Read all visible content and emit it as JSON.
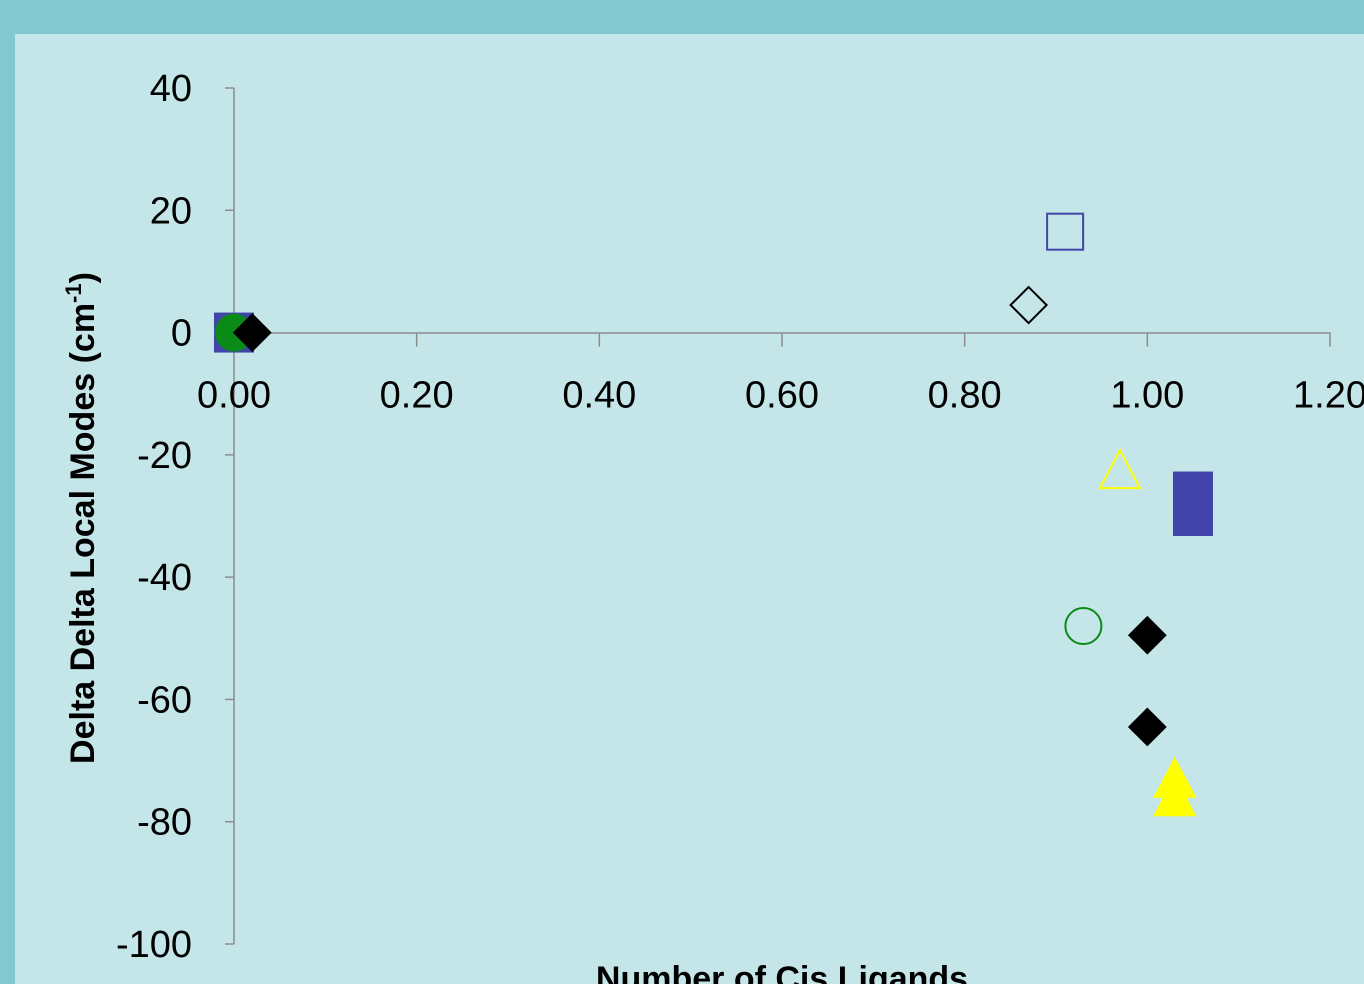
{
  "chart_data": {
    "type": "scatter",
    "xlabel": "Number of Cis Ligands",
    "ylabel_main": "Delta Delta Local Modes (cm",
    "ylabel_sup": "-1",
    "ylabel_close": ")",
    "xlim": [
      0,
      1.2
    ],
    "ylim": [
      -100,
      40
    ],
    "x_ticks": [
      "0.00",
      "0.20",
      "0.40",
      "0.60",
      "0.80",
      "1.00",
      "1.20"
    ],
    "y_ticks": [
      "40",
      "20",
      "0",
      "-20",
      "-40",
      "-60",
      "-80",
      "-100"
    ],
    "grid": false,
    "colors": {
      "background_outer": "#82c8ce",
      "background_plot": "#c5e6e8",
      "blue": "#4144a8",
      "green": "#0a8a16",
      "yellow": "#ffff00",
      "black": "#000000",
      "axis": "#8c8c8c"
    },
    "series": [
      {
        "marker": "square-filled",
        "color": "#4144a8",
        "points": [
          [
            0.0,
            0
          ],
          [
            1.05,
            -26
          ],
          [
            1.05,
            -30
          ]
        ]
      },
      {
        "marker": "circle-filled",
        "color": "#0a8a16",
        "points": [
          [
            0.0,
            0
          ]
        ]
      },
      {
        "marker": "diamond-filled",
        "color": "#000000",
        "points": [
          [
            0.02,
            0
          ],
          [
            1.0,
            -49.5
          ],
          [
            1.0,
            -64.5
          ]
        ]
      },
      {
        "marker": "square-open",
        "color": "#4144a8",
        "points": [
          [
            0.91,
            16.5
          ]
        ]
      },
      {
        "marker": "diamond-open",
        "color": "#000000",
        "points": [
          [
            0.87,
            4.5
          ]
        ]
      },
      {
        "marker": "triangle-open",
        "color": "#ffff00",
        "points": [
          [
            0.97,
            -22.5
          ]
        ]
      },
      {
        "marker": "circle-open",
        "color": "#0a8a16",
        "points": [
          [
            0.93,
            -48
          ]
        ]
      },
      {
        "marker": "triangle-filled",
        "color": "#ffff00",
        "points": [
          [
            1.03,
            -73
          ],
          [
            1.03,
            -76
          ]
        ]
      }
    ]
  }
}
